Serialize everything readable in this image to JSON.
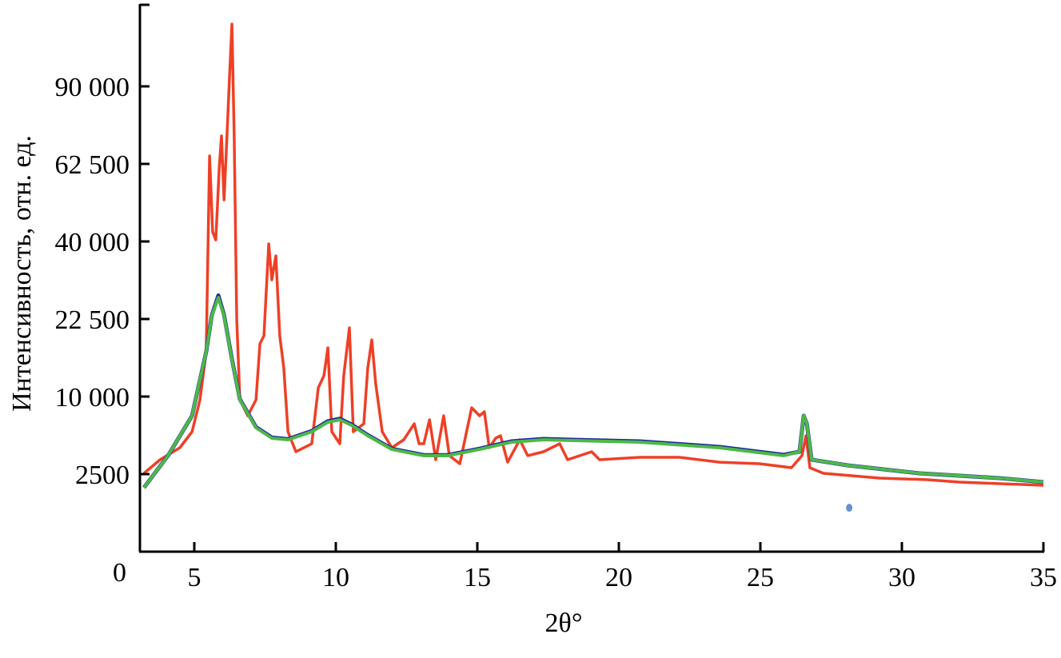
{
  "chart_data": {
    "type": "line",
    "title": "",
    "xlabel": "2θ°",
    "ylabel": "Интенсивность, отн. ед.",
    "xlim": [
      3.1,
      35
    ],
    "ylim": [
      0,
      124000
    ],
    "y_scale": "sqrt",
    "grid": false,
    "x_ticks": [
      5,
      10,
      15,
      20,
      25,
      30,
      35
    ],
    "x_tick_labels": [
      "5",
      "10",
      "15",
      "20",
      "25",
      "30",
      "35"
    ],
    "y_ticks": [
      0,
      2500,
      10000,
      22500,
      40000,
      62500,
      90000
    ],
    "y_tick_labels": [
      "0",
      "2500",
      "10 000",
      "22 500",
      "40 000",
      "62 500",
      "90 000"
    ],
    "series": [
      {
        "name": "red",
        "color": "#ee4027",
        "x": [
          3.22,
          3.79,
          4.49,
          4.92,
          5.2,
          5.42,
          5.54,
          5.65,
          5.76,
          5.88,
          5.96,
          6.05,
          6.13,
          6.24,
          6.33,
          6.41,
          6.5,
          6.61,
          6.89,
          7.18,
          7.32,
          7.46,
          7.63,
          7.74,
          7.88,
          8.02,
          8.16,
          8.31,
          8.59,
          9.15,
          9.38,
          9.58,
          9.72,
          9.86,
          10.14,
          10.28,
          10.48,
          10.62,
          10.99,
          11.13,
          11.27,
          11.41,
          11.64,
          11.98,
          12.4,
          12.77,
          12.94,
          13.11,
          13.31,
          13.53,
          13.81,
          14.01,
          14.38,
          14.8,
          15.08,
          15.25,
          15.42,
          15.65,
          15.82,
          16.07,
          16.5,
          16.78,
          17.34,
          17.91,
          18.19,
          19.04,
          19.32,
          20.73,
          22.15,
          23.56,
          24.97,
          26.1,
          26.47,
          26.61,
          26.75,
          27.23,
          29.21,
          30.9,
          32.03,
          35.0
        ],
        "y": [
          2550,
          3515,
          4490,
          5980,
          9590,
          16600,
          65100,
          42500,
          40400,
          61200,
          71850,
          51440,
          66420,
          92500,
          115700,
          71850,
          22350,
          9590,
          7680,
          9590,
          17960,
          19370,
          39390,
          30720,
          36370,
          19370,
          14060,
          5980,
          4150,
          4840,
          11170,
          12860,
          17280,
          5980,
          4840,
          12860,
          20830,
          5980,
          6800,
          14060,
          18660,
          11720,
          5980,
          4490,
          5210,
          6800,
          4840,
          4840,
          7230,
          3515,
          7680,
          3830,
          3215,
          8610,
          7680,
          8140,
          4490,
          5360,
          5590,
          3330,
          5210,
          3830,
          4150,
          4840,
          3515,
          4150,
          3515,
          3700,
          3700,
          3330,
          3215,
          2930,
          3830,
          5590,
          2930,
          2550,
          2250,
          2150,
          2010,
          1830
        ]
      },
      {
        "name": "blue",
        "color": "#1f2a9c",
        "x": [
          3.22,
          4.07,
          4.92,
          5.42,
          5.62,
          5.85,
          6.05,
          6.33,
          6.61,
          7.18,
          7.74,
          8.31,
          9.15,
          9.72,
          10.14,
          10.56,
          11.13,
          11.98,
          13.11,
          13.95,
          15.08,
          16.21,
          17.34,
          18.47,
          20.73,
          23.56,
          25.82,
          26.38,
          26.53,
          26.64,
          26.81,
          28.08,
          30.62,
          33.45,
          35.0
        ],
        "y": [
          1700,
          3830,
          7680,
          16600,
          23200,
          27300,
          23300,
          15400,
          9650,
          6450,
          5420,
          5270,
          6050,
          7080,
          7350,
          6720,
          5650,
          4400,
          3880,
          3880,
          4410,
          5060,
          5280,
          5200,
          5060,
          4560,
          3900,
          4150,
          7680,
          6800,
          3515,
          3100,
          2550,
          2250,
          2010
        ]
      },
      {
        "name": "green",
        "color": "#4db848",
        "x": [
          3.22,
          4.07,
          4.92,
          5.42,
          5.62,
          5.85,
          6.05,
          6.33,
          6.61,
          7.18,
          7.74,
          8.31,
          9.15,
          9.72,
          10.14,
          10.56,
          11.13,
          11.98,
          13.11,
          13.95,
          15.08,
          16.21,
          17.34,
          18.47,
          20.73,
          23.56,
          25.82,
          26.38,
          26.53,
          26.64,
          26.81,
          28.08,
          30.62,
          33.45,
          35.0
        ],
        "y": [
          1700,
          3830,
          7680,
          16600,
          23120,
          26870,
          23120,
          15300,
          9590,
          6380,
          5360,
          5210,
          5980,
          6970,
          7230,
          6630,
          5590,
          4350,
          3830,
          3830,
          4350,
          4990,
          5210,
          5130,
          4990,
          4490,
          3830,
          4150,
          7680,
          6800,
          3515,
          3100,
          2550,
          2250,
          2010
        ]
      }
    ],
    "annotations": [
      {
        "type": "point",
        "x": 28.14,
        "y": 800,
        "color": "#6b8fd0"
      }
    ]
  }
}
